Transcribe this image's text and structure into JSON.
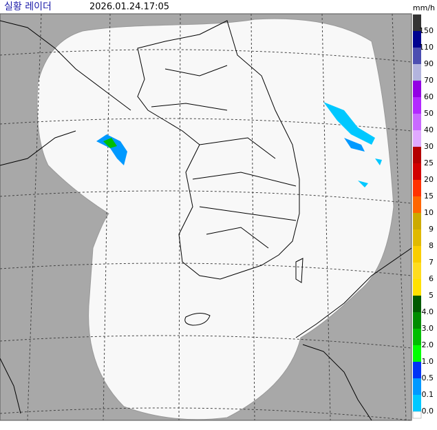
{
  "header": {
    "title": "실황 레이더",
    "timestamp": "2026.01.24.17:05",
    "unit": "mm/h"
  },
  "legend": [
    {
      "label": "150",
      "color": "#333333"
    },
    {
      "label": "110",
      "color": "#000390"
    },
    {
      "label": "90",
      "color": "#4c4eb1"
    },
    {
      "label": "70",
      "color": "#b3b4de"
    },
    {
      "label": "60",
      "color": "#9300e4"
    },
    {
      "label": "50",
      "color": "#b329ff"
    },
    {
      "label": "40",
      "color": "#c969ff"
    },
    {
      "label": "30",
      "color": "#e0a9ff"
    },
    {
      "label": "25",
      "color": "#b40000"
    },
    {
      "label": "20",
      "color": "#d20000"
    },
    {
      "label": "15",
      "color": "#ff3200"
    },
    {
      "label": "10",
      "color": "#ff6600"
    },
    {
      "label": "9",
      "color": "#ccaa00"
    },
    {
      "label": "8",
      "color": "#e0b900"
    },
    {
      "label": "7",
      "color": "#f9cd00"
    },
    {
      "label": "6",
      "color": "#ffdc1f"
    },
    {
      "label": "5",
      "color": "#ffe100"
    },
    {
      "label": "4.0",
      "color": "#005a00"
    },
    {
      "label": "3.0",
      "color": "#008c00"
    },
    {
      "label": "2.0",
      "color": "#00be00"
    },
    {
      "label": "1.0",
      "color": "#00ff00"
    },
    {
      "label": "0.5",
      "color": "#0033f5"
    },
    {
      "label": "0.1",
      "color": "#0099ff"
    },
    {
      "label": "0.0",
      "color": "#00c8ff"
    }
  ]
}
